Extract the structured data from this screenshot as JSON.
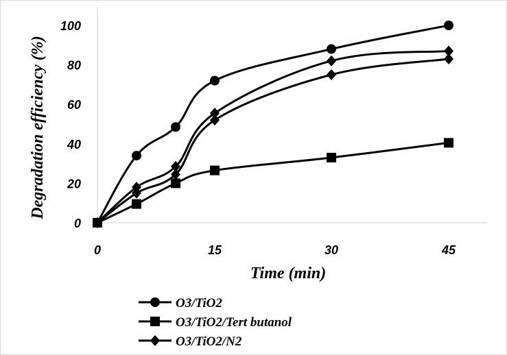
{
  "chart_data": {
    "type": "line",
    "x": [
      0,
      5,
      10,
      15,
      30,
      45
    ],
    "x_tick_labels": [
      "0",
      "15",
      "30",
      "45"
    ],
    "x_tick_values": [
      0,
      15,
      30,
      45
    ],
    "y_tick_labels": [
      "0",
      "20",
      "40",
      "60",
      "80",
      "100"
    ],
    "y_tick_values": [
      0,
      20,
      40,
      60,
      80,
      100
    ],
    "ylim": [
      0,
      100
    ],
    "xlabel": "Time (min)",
    "ylabel": "Degradation efficiency (%)",
    "grid": false,
    "legend_position": "bottom-left",
    "series": [
      {
        "name": "O3/TiO2",
        "marker": "circle",
        "color": "#000000",
        "values": [
          0,
          34,
          48.5,
          72,
          88,
          100
        ]
      },
      {
        "name": "O3/TiO2/Tert butanol",
        "marker": "square",
        "color": "#000000",
        "values": [
          0,
          9.5,
          20,
          26.5,
          33,
          40.5
        ]
      },
      {
        "name": "O3/TiO2/N2",
        "marker": "diamond",
        "color": "#000000",
        "values": [
          0,
          18,
          28.5,
          55.5,
          82,
          87
        ]
      },
      {
        "name": "",
        "marker": "diamond",
        "color": "#000000",
        "values": [
          0,
          15,
          24.5,
          52,
          75,
          83
        ]
      }
    ]
  }
}
